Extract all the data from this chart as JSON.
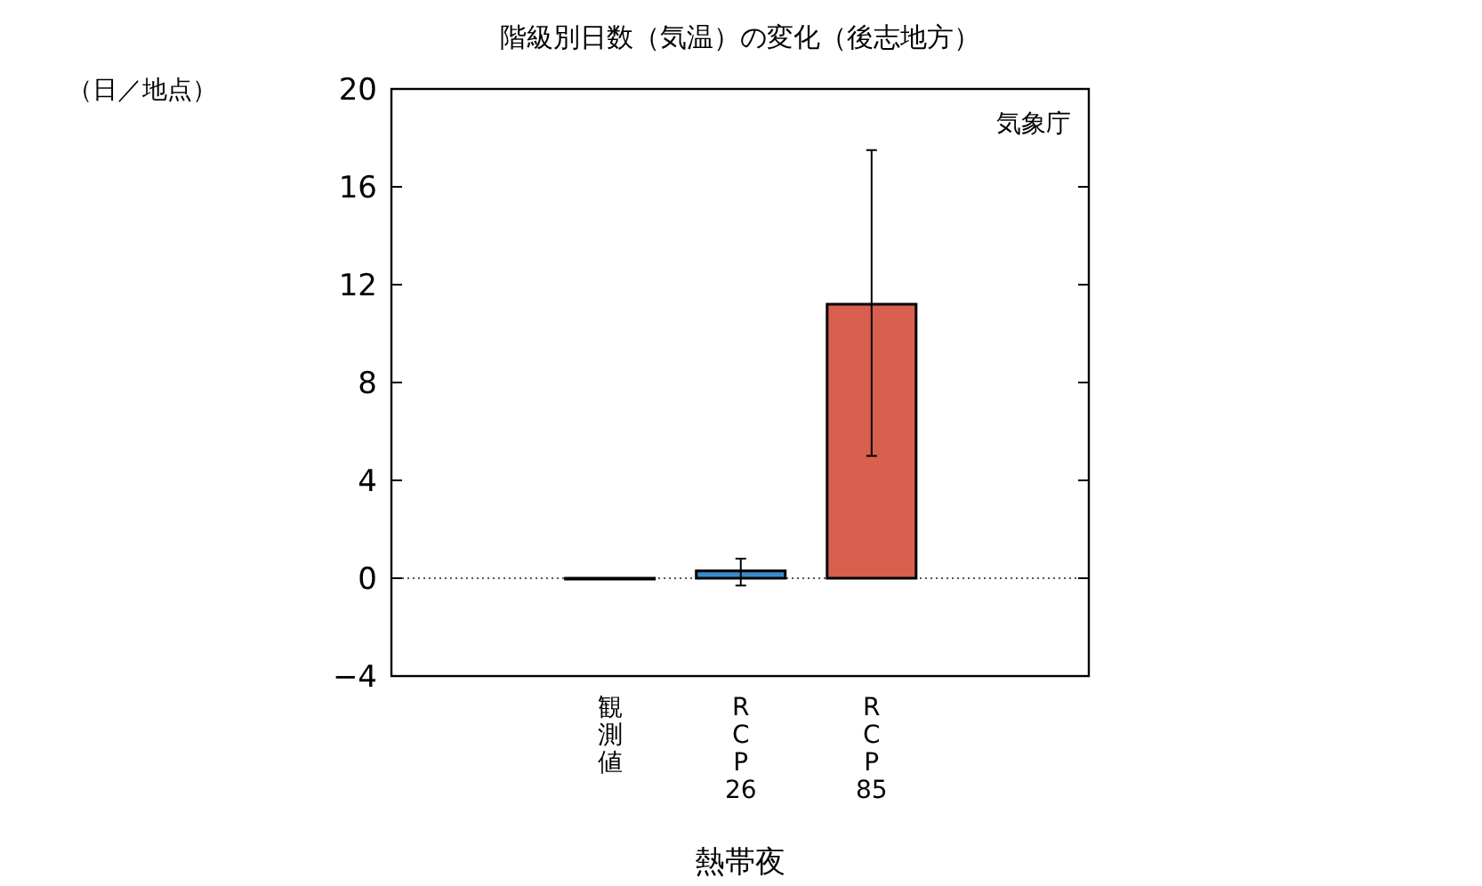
{
  "chart_data": {
    "type": "bar",
    "title": "階級別日数（気温）の変化（後志地方）",
    "ylabel": "（日／地点）",
    "xlabel": "熱帯夜",
    "categories": [
      "観測値",
      "RCP26",
      "RCP85"
    ],
    "values": [
      0,
      0.3,
      11.2
    ],
    "colors": [
      "#333333",
      "#3a8cc8",
      "#d9604f"
    ],
    "errors": [
      null,
      [
        -0.3,
        0.8
      ],
      [
        5.0,
        17.5
      ]
    ],
    "ylim": [
      -4,
      20
    ],
    "yticks": [
      {
        "value": -4,
        "label": "−4"
      },
      0,
      4,
      8,
      12,
      16,
      20
    ],
    "ref_lines": [
      {
        "axis": "y",
        "value": 0,
        "line_style": "dotted"
      }
    ],
    "annotations": [
      "気象庁"
    ],
    "grid": false
  }
}
